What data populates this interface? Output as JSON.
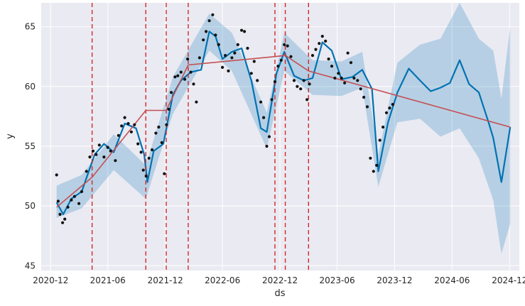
{
  "chart_data": {
    "type": "line",
    "title": "",
    "xlabel": "ds",
    "ylabel": "y",
    "ylim": [
      44.6,
      67.0
    ],
    "xlim": [
      "2020-11-01",
      "2025-01-01"
    ],
    "grid": true,
    "x_ticks": [
      "2020-12",
      "2021-06",
      "2021-12",
      "2022-06",
      "2022-12",
      "2023-06",
      "2023-12",
      "2024-06",
      "2024-12"
    ],
    "y_ticks": [
      45,
      50,
      55,
      60,
      65
    ],
    "changepoints": [
      "2021-04-12",
      "2021-09-30",
      "2021-12-04",
      "2022-02-12",
      "2022-11-15",
      "2022-12-18",
      "2023-03-02"
    ],
    "series": [
      {
        "role": "trend",
        "color": "#c44e52",
        "x": [
          "2020-12-20",
          "2021-04-12",
          "2021-09-30",
          "2021-12-04",
          "2022-02-12",
          "2022-11-15",
          "2022-12-18",
          "2023-03-02",
          "2024-12-03"
        ],
        "y": [
          49.9,
          52.4,
          58.0,
          58.0,
          61.8,
          62.5,
          62.6,
          61.3,
          56.6
        ]
      },
      {
        "role": "forecast",
        "color": "#0072b2",
        "x": [
          "2020-12-20",
          "2021-01-10",
          "2021-02-05",
          "2021-03-10",
          "2021-04-20",
          "2021-05-20",
          "2021-06-20",
          "2021-07-25",
          "2021-08-30",
          "2021-09-25",
          "2021-10-05",
          "2021-10-25",
          "2021-11-25",
          "2021-12-25",
          "2022-01-20",
          "2022-02-20",
          "2022-03-25",
          "2022-04-20",
          "2022-05-10",
          "2022-06-01",
          "2022-07-01",
          "2022-08-01",
          "2022-09-01",
          "2022-10-01",
          "2022-10-20",
          "2022-11-20",
          "2022-12-15",
          "2023-01-15",
          "2023-02-15",
          "2023-03-15",
          "2023-04-15",
          "2023-05-15",
          "2023-06-15",
          "2023-07-20",
          "2023-08-20",
          "2023-09-20",
          "2023-10-10",
          "2023-11-10",
          "2023-12-10",
          "2024-01-15",
          "2024-02-20",
          "2024-03-25",
          "2024-04-25",
          "2024-05-25",
          "2024-06-25",
          "2024-07-25",
          "2024-08-25",
          "2024-09-25",
          "2024-10-10",
          "2024-11-05",
          "2024-12-03"
        ],
        "y": [
          50.3,
          49.3,
          50.6,
          51.2,
          54.3,
          55.2,
          54.5,
          56.9,
          56.5,
          54.3,
          52.0,
          54.6,
          55.2,
          59.3,
          60.5,
          61.2,
          61.4,
          64.6,
          64.2,
          62.3,
          62.9,
          63.2,
          60.5,
          56.5,
          56.2,
          61.1,
          62.9,
          60.9,
          60.5,
          60.7,
          63.7,
          63.0,
          60.6,
          60.8,
          61.4,
          59.8,
          52.9,
          57.0,
          59.5,
          61.5,
          60.5,
          59.6,
          59.9,
          60.3,
          62.2,
          60.2,
          59.5,
          57.0,
          55.7,
          52.0,
          56.6
        ]
      },
      {
        "role": "forecast_lower",
        "x": [
          "2020-12-20",
          "2021-03-10",
          "2021-06-20",
          "2021-09-30",
          "2021-12-25",
          "2022-04-20",
          "2022-07-01",
          "2022-10-20",
          "2022-12-15",
          "2023-03-15",
          "2023-06-15",
          "2023-08-20",
          "2023-10-10",
          "2023-12-10",
          "2024-02-20",
          "2024-04-25",
          "2024-06-25",
          "2024-08-25",
          "2024-10-10",
          "2024-11-05",
          "2024-12-03"
        ],
        "y": [
          49.0,
          49.8,
          53.0,
          50.6,
          57.7,
          63.0,
          61.3,
          54.8,
          61.3,
          59.3,
          59.2,
          59.9,
          51.6,
          57.0,
          57.3,
          55.8,
          56.5,
          54.0,
          50.5,
          46.0,
          48.5
        ]
      },
      {
        "role": "forecast_upper",
        "x": [
          "2020-12-20",
          "2021-03-10",
          "2021-06-20",
          "2021-09-30",
          "2021-12-25",
          "2022-04-20",
          "2022-07-01",
          "2022-10-20",
          "2022-12-15",
          "2023-03-15",
          "2023-06-15",
          "2023-08-20",
          "2023-10-10",
          "2023-12-10",
          "2024-02-20",
          "2024-04-25",
          "2024-06-25",
          "2024-08-25",
          "2024-10-10",
          "2024-11-05",
          "2024-12-03"
        ],
        "y": [
          51.7,
          52.6,
          56.0,
          53.4,
          60.8,
          66.1,
          64.5,
          57.8,
          64.5,
          62.2,
          62.1,
          62.9,
          54.3,
          62.0,
          63.5,
          64.0,
          67.0,
          64.0,
          63.0,
          59.0,
          65.0
        ]
      },
      {
        "role": "observed",
        "color": "#111111",
        "x": [
          "2020-12-20",
          "2020-12-25",
          "2020-12-31",
          "2021-01-08",
          "2021-01-15",
          "2021-01-25",
          "2021-02-05",
          "2021-02-15",
          "2021-03-01",
          "2021-03-10",
          "2021-03-25",
          "2021-04-05",
          "2021-04-15",
          "2021-04-25",
          "2021-05-05",
          "2021-05-20",
          "2021-06-01",
          "2021-06-10",
          "2021-06-25",
          "2021-07-05",
          "2021-07-15",
          "2021-07-25",
          "2021-08-05",
          "2021-08-15",
          "2021-08-25",
          "2021-09-05",
          "2021-09-15",
          "2021-09-22",
          "2021-10-01",
          "2021-10-10",
          "2021-10-20",
          "2021-11-01",
          "2021-11-10",
          "2021-11-20",
          "2021-11-28",
          "2021-12-05",
          "2021-12-12",
          "2021-12-20",
          "2022-01-01",
          "2022-01-10",
          "2022-01-20",
          "2022-02-01",
          "2022-02-10",
          "2022-02-20",
          "2022-03-01",
          "2022-03-10",
          "2022-03-20",
          "2022-04-01",
          "2022-04-10",
          "2022-04-20",
          "2022-05-01",
          "2022-05-10",
          "2022-05-20",
          "2022-06-01",
          "2022-06-10",
          "2022-06-20",
          "2022-07-01",
          "2022-07-10",
          "2022-07-20",
          "2022-08-01",
          "2022-08-10",
          "2022-08-20",
          "2022-09-01",
          "2022-09-10",
          "2022-09-20",
          "2022-10-01",
          "2022-10-10",
          "2022-10-20",
          "2022-10-28",
          "2022-11-05",
          "2022-11-15",
          "2022-11-25",
          "2022-12-05",
          "2022-12-15",
          "2022-12-25",
          "2023-01-05",
          "2023-01-15",
          "2023-01-25",
          "2023-02-05",
          "2023-02-15",
          "2023-02-25",
          "2023-03-05",
          "2023-03-15",
          "2023-03-25",
          "2023-04-05",
          "2023-04-15",
          "2023-04-25",
          "2023-05-05",
          "2023-05-15",
          "2023-05-25",
          "2023-06-05",
          "2023-06-15",
          "2023-06-25",
          "2023-07-05",
          "2023-07-15",
          "2023-07-25",
          "2023-08-05",
          "2023-08-15",
          "2023-08-25",
          "2023-09-05",
          "2023-09-15",
          "2023-09-25",
          "2023-10-05",
          "2023-10-15",
          "2023-10-25",
          "2023-11-05",
          "2023-11-15",
          "2023-11-25"
        ],
        "y": [
          52.6,
          50.4,
          49.3,
          48.6,
          48.9,
          49.9,
          50.5,
          50.8,
          50.2,
          51.2,
          52.9,
          54.1,
          54.6,
          54.3,
          55.1,
          54.1,
          54.9,
          54.6,
          53.8,
          55.9,
          56.7,
          57.4,
          56.9,
          56.2,
          56.8,
          55.2,
          54.5,
          53.0,
          52.5,
          54.0,
          54.7,
          56.1,
          56.6,
          55.3,
          52.7,
          56.8,
          58.1,
          59.5,
          60.8,
          60.9,
          61.2,
          60.6,
          62.3,
          61.2,
          60.2,
          58.7,
          62.4,
          63.9,
          64.6,
          65.5,
          66.0,
          64.3,
          63.5,
          61.6,
          62.6,
          61.3,
          62.4,
          62.8,
          63.5,
          64.7,
          64.6,
          63.2,
          61.1,
          62.1,
          60.5,
          58.7,
          57.4,
          55.0,
          55.8,
          58.9,
          60.4,
          61.7,
          62.2,
          63.5,
          63.4,
          62.5,
          60.5,
          60.0,
          59.8,
          60.5,
          58.9,
          60.2,
          62.6,
          63.1,
          63.6,
          64.2,
          63.8,
          62.3,
          61.7,
          60.7,
          61.1,
          60.7,
          60.3,
          62.8,
          62.0,
          60.7,
          60.5,
          59.8,
          59.1,
          58.3,
          54.0,
          52.9,
          53.4,
          55.5,
          56.6,
          57.8,
          58.2,
          58.5
        ]
      }
    ]
  }
}
